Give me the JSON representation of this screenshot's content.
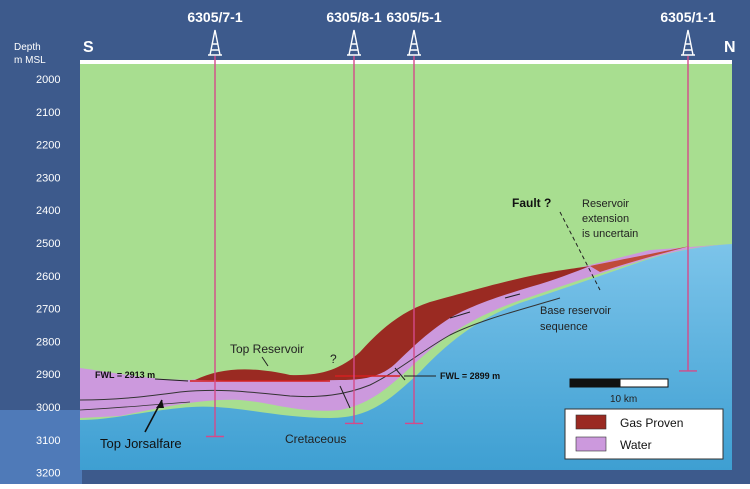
{
  "axis": {
    "label_line1": "Depth",
    "label_line2": "m MSL",
    "ticks": [
      "2000",
      "2100",
      "2200",
      "2300",
      "2400",
      "2500",
      "2600",
      "2700",
      "2800",
      "2900",
      "3000",
      "3100",
      "3200"
    ]
  },
  "directions": {
    "south": "S",
    "north": "N"
  },
  "wells": [
    {
      "name": "6305/7-1",
      "top_depth": 2000,
      "td_depth": 3090
    },
    {
      "name": "6305/8-1",
      "top_depth": 2000,
      "td_depth": 3050
    },
    {
      "name": "6305/5-1",
      "top_depth": 2000,
      "td_depth": 3050
    },
    {
      "name": "6305/1-1",
      "top_depth": 2000,
      "td_depth": 2890
    }
  ],
  "annotations": {
    "fault": "Fault ?",
    "reservoir_ext_1": "Reservoir",
    "reservoir_ext_2": "extension",
    "reservoir_ext_3": "is uncertain",
    "base_res_1": "Base reservoir",
    "base_res_2": "sequence",
    "top_reservoir": "Top Reservoir",
    "question": "?",
    "fwl_left": "FWL = 2913 m",
    "fwl_right": "FWL = 2899 m",
    "top_jorsalfare": "Top Jorsalfare",
    "cretaceous": "Cretaceous"
  },
  "scale_bar": {
    "label": "10 km"
  },
  "legend": {
    "items": [
      {
        "label": "Gas Proven",
        "color": "#9a2a22"
      },
      {
        "label": "Water",
        "color": "#cc99dd"
      }
    ]
  },
  "colors": {
    "sky": "#ffffff",
    "overburden": "#a8de90",
    "gas": "#9a2a22",
    "water": "#cc99dd",
    "basement": "#5fb0dc",
    "well": "#d44a8a",
    "frame": "#3d5a8c"
  }
}
